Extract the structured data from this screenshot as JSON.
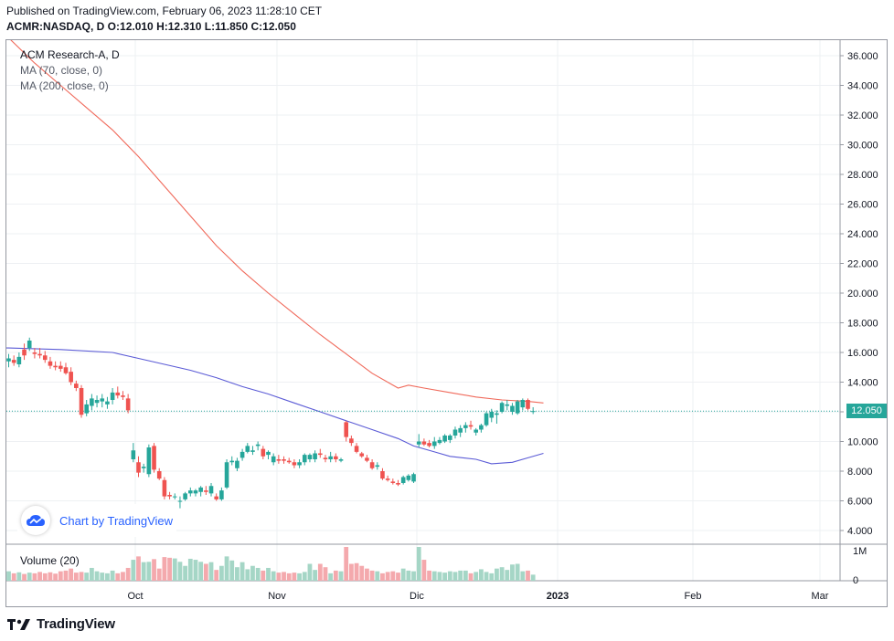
{
  "header": {
    "published": "Published on TradingView.com, February 06, 2023 11:28:10 CET",
    "symbol": "ACMR:NASDAQ, D",
    "o_label": "O:",
    "o_value": "12.010",
    "h_label": "H:",
    "h_value": "12.310",
    "l_label": "L:",
    "l_value": "11.850",
    "c_label": "C:",
    "c_value": "12.050"
  },
  "legend": {
    "title": "ACM Research-A, D",
    "ma70": "MA (70, close, 0)",
    "ma200": "MA (200, close, 0)",
    "volume": "Volume (20)"
  },
  "badge": {
    "text": "Chart by TradingView",
    "icon": "tradingview-cloud-icon"
  },
  "footer": {
    "text": "TradingView",
    "icon": "tradingview-logo-icon"
  },
  "last_price": "12.050",
  "colors": {
    "up": "#26a69a",
    "down": "#ef5350",
    "ma70": "#f0695a",
    "ma200": "#5b5bd6",
    "up_vol": "#a5d6c6",
    "down_vol": "#f4a9ad"
  },
  "chart_data": {
    "type": "candlestick",
    "x_axis_labels": [
      "Oct",
      "Nov",
      "Dic",
      "2023",
      "Feb",
      "Mar"
    ],
    "y_axis_labels": [
      "36.000",
      "34.000",
      "32.000",
      "30.000",
      "28.000",
      "26.000",
      "24.000",
      "22.000",
      "20.000",
      "18.000",
      "16.000",
      "14.000",
      "12.000",
      "10.000",
      "8.000",
      "6.000",
      "4.000"
    ],
    "ylim": [
      3.2,
      36.8
    ],
    "volume_axis_labels": [
      "1M",
      "0"
    ],
    "candles": [
      [
        15.4,
        15.9,
        15.0,
        15.6
      ],
      [
        15.5,
        15.8,
        15.1,
        15.3
      ],
      [
        15.2,
        16.0,
        15.0,
        15.7
      ],
      [
        16.2,
        16.6,
        15.5,
        15.8
      ],
      [
        16.3,
        17.0,
        16.1,
        16.8
      ],
      [
        16.0,
        16.3,
        15.6,
        15.9
      ],
      [
        15.9,
        16.3,
        15.6,
        15.8
      ],
      [
        15.8,
        16.1,
        15.3,
        15.5
      ],
      [
        15.4,
        15.7,
        14.9,
        15.1
      ],
      [
        15.1,
        15.4,
        14.8,
        15.0
      ],
      [
        15.1,
        15.4,
        14.7,
        14.9
      ],
      [
        15.0,
        15.3,
        14.5,
        14.6
      ],
      [
        14.7,
        15.0,
        13.8,
        14.0
      ],
      [
        13.9,
        14.1,
        13.4,
        13.6
      ],
      [
        13.6,
        13.8,
        11.6,
        11.8
      ],
      [
        11.9,
        12.8,
        11.7,
        12.5
      ],
      [
        12.4,
        13.2,
        12.1,
        12.9
      ],
      [
        12.6,
        13.1,
        12.3,
        12.8
      ],
      [
        12.7,
        13.2,
        12.3,
        12.9
      ],
      [
        12.5,
        13.0,
        12.2,
        12.7
      ],
      [
        12.8,
        13.6,
        12.5,
        13.3
      ],
      [
        13.3,
        13.7,
        12.9,
        13.1
      ],
      [
        13.1,
        13.4,
        12.8,
        13.0
      ],
      [
        12.9,
        13.2,
        11.9,
        12.1
      ],
      [
        8.8,
        9.9,
        8.6,
        9.4
      ],
      [
        8.6,
        9.0,
        7.6,
        7.9
      ],
      [
        8.2,
        8.5,
        7.9,
        8.3
      ],
      [
        7.8,
        9.8,
        7.6,
        9.6
      ],
      [
        9.7,
        9.9,
        7.9,
        8.1
      ],
      [
        8.0,
        8.2,
        7.4,
        7.5
      ],
      [
        7.4,
        7.6,
        6.1,
        6.3
      ],
      [
        6.4,
        6.6,
        6.1,
        6.3
      ],
      [
        6.3,
        6.5,
        6.1,
        6.3
      ],
      [
        6.0,
        6.3,
        5.5,
        6.0
      ],
      [
        6.1,
        6.6,
        6.0,
        6.5
      ],
      [
        6.5,
        6.9,
        6.3,
        6.7
      ],
      [
        6.5,
        6.8,
        6.3,
        6.7
      ],
      [
        6.6,
        7.0,
        6.3,
        6.9
      ],
      [
        6.7,
        7.0,
        6.4,
        6.6
      ],
      [
        6.5,
        7.2,
        6.3,
        7.0
      ],
      [
        6.3,
        6.5,
        6.0,
        6.1
      ],
      [
        6.1,
        6.9,
        6.0,
        6.7
      ],
      [
        6.9,
        8.8,
        6.8,
        8.6
      ],
      [
        8.6,
        9.0,
        8.4,
        8.7
      ],
      [
        8.2,
        8.9,
        8.0,
        8.7
      ],
      [
        8.9,
        9.5,
        8.7,
        9.3
      ],
      [
        9.3,
        9.9,
        9.2,
        9.7
      ],
      [
        9.3,
        9.7,
        9.1,
        9.4
      ],
      [
        9.7,
        10.0,
        9.4,
        9.8
      ],
      [
        9.5,
        9.7,
        8.8,
        9.0
      ],
      [
        9.1,
        9.4,
        8.8,
        9.3
      ],
      [
        8.6,
        9.2,
        8.4,
        9.0
      ],
      [
        8.8,
        9.1,
        8.5,
        8.7
      ],
      [
        8.8,
        9.0,
        8.5,
        8.7
      ],
      [
        8.7,
        8.9,
        8.5,
        8.6
      ],
      [
        8.6,
        8.8,
        8.2,
        8.4
      ],
      [
        8.4,
        8.8,
        8.2,
        8.6
      ],
      [
        8.6,
        9.2,
        8.4,
        9.1
      ],
      [
        8.8,
        9.2,
        8.6,
        9.1
      ],
      [
        8.8,
        9.4,
        8.6,
        9.2
      ],
      [
        9.2,
        9.5,
        8.9,
        9.1
      ],
      [
        8.9,
        9.1,
        8.6,
        8.8
      ],
      [
        8.8,
        9.3,
        8.6,
        9.0
      ],
      [
        9.0,
        9.2,
        8.6,
        8.8
      ],
      [
        8.7,
        8.9,
        8.6,
        8.8
      ],
      [
        11.3,
        11.4,
        10.0,
        10.3
      ],
      [
        10.2,
        10.4,
        9.7,
        9.9
      ],
      [
        9.7,
        9.9,
        9.2,
        9.3
      ],
      [
        9.2,
        9.3,
        8.9,
        9.0
      ],
      [
        8.9,
        9.1,
        8.6,
        8.7
      ],
      [
        8.6,
        8.8,
        8.1,
        8.2
      ],
      [
        8.3,
        8.6,
        8.1,
        8.4
      ],
      [
        8.0,
        8.2,
        7.4,
        7.5
      ],
      [
        7.5,
        7.7,
        7.3,
        7.4
      ],
      [
        7.3,
        7.5,
        7.1,
        7.2
      ],
      [
        7.2,
        7.4,
        7.0,
        7.1
      ],
      [
        7.2,
        7.7,
        7.1,
        7.6
      ],
      [
        7.4,
        7.8,
        7.3,
        7.7
      ],
      [
        7.3,
        7.9,
        7.2,
        7.8
      ],
      [
        9.8,
        10.5,
        9.6,
        10.0
      ],
      [
        10.0,
        10.2,
        9.7,
        9.8
      ],
      [
        9.9,
        10.1,
        9.6,
        9.7
      ],
      [
        9.7,
        10.3,
        9.5,
        10.0
      ],
      [
        9.9,
        10.3,
        9.8,
        10.1
      ],
      [
        10.0,
        10.5,
        9.9,
        10.4
      ],
      [
        10.1,
        10.5,
        9.9,
        10.4
      ],
      [
        10.4,
        11.0,
        10.2,
        10.8
      ],
      [
        10.6,
        11.1,
        10.3,
        10.9
      ],
      [
        10.9,
        11.3,
        10.6,
        11.1
      ],
      [
        11.1,
        11.4,
        10.8,
        11.0
      ],
      [
        10.6,
        10.9,
        10.4,
        10.8
      ],
      [
        10.8,
        11.2,
        10.6,
        11.1
      ],
      [
        11.1,
        12.0,
        11.0,
        11.9
      ],
      [
        11.6,
        12.2,
        11.3,
        12.0
      ],
      [
        11.8,
        12.1,
        11.2,
        11.9
      ],
      [
        12.0,
        12.7,
        11.9,
        12.6
      ],
      [
        12.4,
        12.8,
        12.1,
        12.5
      ],
      [
        12.0,
        12.6,
        11.8,
        12.4
      ],
      [
        11.9,
        12.8,
        11.8,
        12.7
      ],
      [
        12.3,
        12.9,
        12.1,
        12.8
      ],
      [
        12.8,
        12.9,
        12.1,
        12.2
      ],
      [
        12.01,
        12.31,
        11.85,
        12.05
      ]
    ],
    "ma70": [
      [
        0,
        37.2
      ],
      [
        5,
        35.5
      ],
      [
        10,
        34.0
      ],
      [
        15,
        32.5
      ],
      [
        20,
        31.0
      ],
      [
        25,
        29.2
      ],
      [
        30,
        27.2
      ],
      [
        35,
        25.2
      ],
      [
        40,
        23.2
      ],
      [
        45,
        21.5
      ],
      [
        50,
        20.0
      ],
      [
        55,
        18.6
      ],
      [
        60,
        17.2
      ],
      [
        65,
        15.9
      ],
      [
        70,
        14.6
      ],
      [
        75,
        13.6
      ],
      [
        77,
        13.8
      ],
      [
        80,
        13.6
      ],
      [
        85,
        13.3
      ],
      [
        90,
        13.0
      ],
      [
        95,
        12.8
      ],
      [
        100,
        12.7
      ],
      [
        103,
        12.6
      ]
    ],
    "ma200": [
      [
        -15,
        16.3
      ],
      [
        0,
        16.3
      ],
      [
        10,
        16.2
      ],
      [
        20,
        16.0
      ],
      [
        25,
        15.6
      ],
      [
        30,
        15.2
      ],
      [
        35,
        14.8
      ],
      [
        40,
        14.3
      ],
      [
        45,
        13.7
      ],
      [
        50,
        13.2
      ],
      [
        55,
        12.6
      ],
      [
        60,
        12.0
      ],
      [
        65,
        11.4
      ],
      [
        70,
        10.8
      ],
      [
        75,
        10.2
      ],
      [
        78,
        9.7
      ],
      [
        82,
        9.3
      ],
      [
        85,
        9.0
      ],
      [
        90,
        8.8
      ],
      [
        93,
        8.5
      ],
      [
        97,
        8.6
      ],
      [
        100,
        8.9
      ],
      [
        103,
        9.2
      ]
    ],
    "volume": [
      0.28,
      0.22,
      0.25,
      0.2,
      0.24,
      0.22,
      0.26,
      0.22,
      0.25,
      0.21,
      0.28,
      0.3,
      0.36,
      0.24,
      0.26,
      0.24,
      0.38,
      0.28,
      0.24,
      0.22,
      0.3,
      0.22,
      0.26,
      0.38,
      0.62,
      0.72,
      0.55,
      0.56,
      0.64,
      0.36,
      0.7,
      0.68,
      0.66,
      0.56,
      0.44,
      0.65,
      0.62,
      0.56,
      0.5,
      0.55,
      0.32,
      0.44,
      0.72,
      0.6,
      0.4,
      0.55,
      0.34,
      0.44,
      0.38,
      0.3,
      0.38,
      0.28,
      0.24,
      0.26,
      0.22,
      0.24,
      0.22,
      0.26,
      0.5,
      0.32,
      0.5,
      0.4,
      0.22,
      0.3,
      0.28,
      1.0,
      0.5,
      0.52,
      0.44,
      0.36,
      0.3,
      0.28,
      0.22,
      0.26,
      0.28,
      0.24,
      0.36,
      0.3,
      0.28,
      1.0,
      0.62,
      0.3,
      0.28,
      0.26,
      0.24,
      0.28,
      0.26,
      0.3,
      0.3,
      0.22,
      0.26,
      0.34,
      0.26,
      0.22,
      0.36,
      0.4,
      0.32,
      0.48,
      0.5,
      0.28,
      0.3,
      0.18
    ]
  }
}
